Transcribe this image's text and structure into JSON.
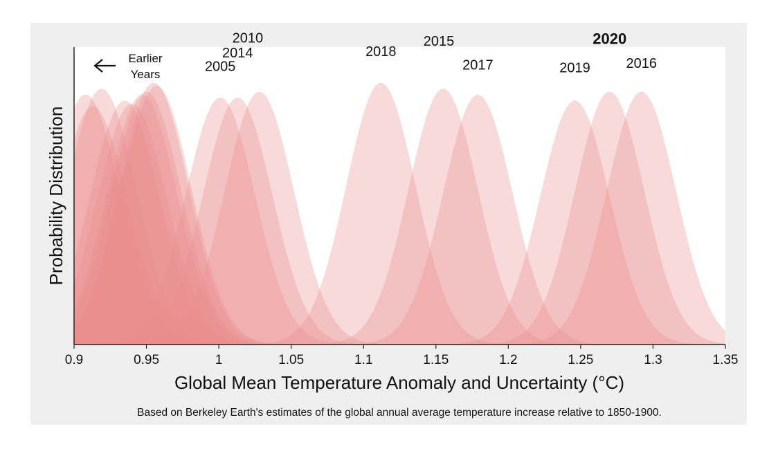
{
  "chart_data": {
    "type": "area",
    "xlabel": "Global Mean Temperature Anomaly and Uncertainty (°C)",
    "ylabel": "Probability Distribution",
    "xlim": [
      0.9,
      1.35
    ],
    "x_ticks": [
      "0.9",
      "0.95",
      "1",
      "1.05",
      "1.1",
      "1.15",
      "1.2",
      "1.25",
      "1.3",
      "1.35"
    ],
    "grid": false,
    "footnote": "Based on Berkeley Earth's estimates of the global annual average temperature increase relative to 1850-1900.",
    "earlier_note": [
      "Earlier",
      "Years"
    ],
    "fill_color": "#e88b8b",
    "series": [
      {
        "mean": 0.908,
        "peak": 0.84,
        "sigma": 0.024
      },
      {
        "mean": 0.919,
        "peak": 0.86,
        "sigma": 0.024
      },
      {
        "mean": 0.913,
        "peak": 0.8,
        "sigma": 0.024
      },
      {
        "mean": 0.935,
        "peak": 0.82,
        "sigma": 0.024
      },
      {
        "mean": 0.94,
        "peak": 0.81,
        "sigma": 0.024
      },
      {
        "mean": 0.947,
        "peak": 0.84,
        "sigma": 0.024
      },
      {
        "mean": 0.95,
        "peak": 0.85,
        "sigma": 0.024
      },
      {
        "mean": 0.955,
        "peak": 0.88,
        "sigma": 0.024
      },
      {
        "mean": 0.957,
        "peak": 0.87,
        "sigma": 0.024
      },
      {
        "name": "2005",
        "mean": 1.001,
        "peak": 0.83,
        "sigma": 0.024
      },
      {
        "name": "2014",
        "mean": 1.013,
        "peak": 0.83,
        "sigma": 0.024
      },
      {
        "name": "2010",
        "mean": 1.028,
        "peak": 0.85,
        "sigma": 0.024
      },
      {
        "name": "2018",
        "mean": 1.112,
        "peak": 0.88,
        "sigma": 0.024
      },
      {
        "name": "2015",
        "mean": 1.155,
        "peak": 0.86,
        "sigma": 0.024
      },
      {
        "name": "2017",
        "mean": 1.179,
        "peak": 0.84,
        "sigma": 0.024
      },
      {
        "name": "2019",
        "mean": 1.246,
        "peak": 0.82,
        "sigma": 0.024
      },
      {
        "name": "2020",
        "mean": 1.27,
        "peak": 0.85,
        "sigma": 0.024,
        "bold": true
      },
      {
        "name": "2016",
        "mean": 1.292,
        "peak": 0.85,
        "sigma": 0.024
      }
    ],
    "year_labels": [
      {
        "name": "2005",
        "x": 1.001,
        "y": 0.92
      },
      {
        "name": "2014",
        "x": 1.013,
        "y": 0.965
      },
      {
        "name": "2010",
        "x": 1.02,
        "y": 1.015
      },
      {
        "name": "2018",
        "x": 1.112,
        "y": 0.97
      },
      {
        "name": "2015",
        "x": 1.152,
        "y": 1.005
      },
      {
        "name": "2017",
        "x": 1.179,
        "y": 0.925
      },
      {
        "name": "2019",
        "x": 1.246,
        "y": 0.915
      },
      {
        "name": "2020",
        "x": 1.27,
        "y": 1.01,
        "bold": true
      },
      {
        "name": "2016",
        "x": 1.292,
        "y": 0.93
      }
    ]
  }
}
